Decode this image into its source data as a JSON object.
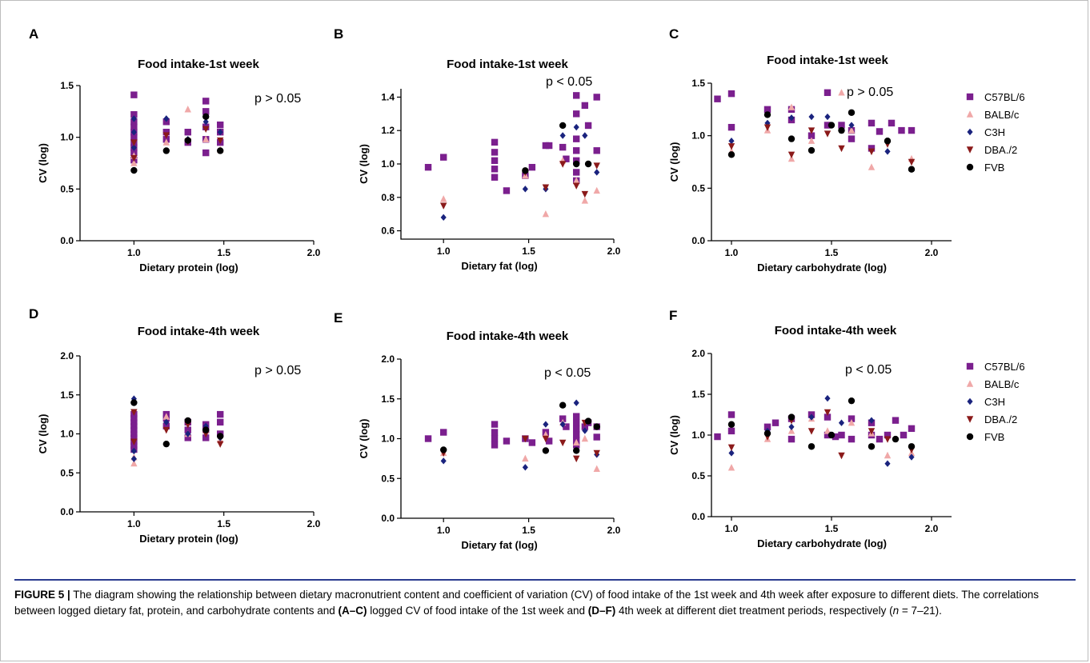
{
  "colors": {
    "C57BL/6": "#7b1f8e",
    "BALB/c": "#f0a8a8",
    "C3H": "#1a237e",
    "DBA./2": "#8b1a1a",
    "FVB": "#000000"
  },
  "legend": {
    "labels": [
      "C57BL/6",
      "BALB/c",
      "C3H",
      "DBA./2",
      "FVB"
    ],
    "markers": [
      "square",
      "triangle-up",
      "diamond",
      "triangle-down",
      "circle"
    ],
    "placement": "right"
  },
  "caption": {
    "label": "FIGURE 5 |",
    "part1": " The diagram showing the relationship between dietary macronutrient content and coefficient of variation (CV) of food intake of the 1st week and 4th week after exposure to different diets. The correlations between logged dietary fat, protein, and carbohydrate contents and ",
    "ref1": "(A–C)",
    "part2": " logged CV of food intake of the 1st week and ",
    "ref2": "(D–F)",
    "part3": " 4th week at different diet treatment periods, respectively (",
    "n_symbol": "n",
    "part4": " = 7–21)."
  },
  "chart_data": [
    {
      "panel": "A",
      "type": "scatter",
      "title": "Food intake-1st week",
      "xlabel": "Dietary protein (log)",
      "ylabel": "CV (log)",
      "xlim": [
        0.7,
        2.0
      ],
      "ylim": [
        0.0,
        1.5
      ],
      "xticks": [
        "1.0",
        "1.5",
        "2.0"
      ],
      "yticks": [
        "0.0",
        "0.5",
        "1.0",
        "1.5"
      ],
      "p_value": "p > 0.05",
      "series": [
        {
          "name": "C57BL/6",
          "x": [
            1.0,
            1.0,
            1.0,
            1.0,
            1.0,
            1.0,
            1.0,
            1.0,
            1.0,
            1.0,
            1.18,
            1.18,
            1.18,
            1.3,
            1.3,
            1.4,
            1.4,
            1.4,
            1.4,
            1.4,
            1.48,
            1.48,
            1.48
          ],
          "y": [
            1.41,
            1.22,
            1.15,
            1.1,
            1.05,
            1.0,
            0.95,
            0.9,
            0.85,
            0.78,
            1.15,
            1.05,
            0.98,
            1.05,
            0.95,
            1.35,
            1.25,
            1.1,
            0.98,
            0.85,
            1.12,
            1.05,
            0.95
          ]
        },
        {
          "name": "BALB/c",
          "x": [
            1.0,
            1.0,
            1.18,
            1.3,
            1.4,
            1.48
          ],
          "y": [
            0.82,
            0.75,
            0.95,
            1.27,
            0.98,
            0.88
          ]
        },
        {
          "name": "C3H",
          "x": [
            1.0,
            1.0,
            1.0,
            1.18,
            1.3,
            1.4,
            1.48
          ],
          "y": [
            1.18,
            1.05,
            0.9,
            1.18,
            0.98,
            1.15,
            1.05
          ]
        },
        {
          "name": "DBA./2",
          "x": [
            1.0,
            1.0,
            1.18,
            1.3,
            1.4,
            1.48
          ],
          "y": [
            0.95,
            0.8,
            1.02,
            0.96,
            1.08,
            0.97
          ]
        },
        {
          "name": "FVB",
          "x": [
            1.0,
            1.18,
            1.3,
            1.4,
            1.48
          ],
          "y": [
            0.68,
            0.87,
            0.97,
            1.2,
            0.87
          ]
        }
      ]
    },
    {
      "panel": "B",
      "type": "scatter",
      "title": "Food intake-1st week",
      "xlabel": "Dietary fat (log)",
      "ylabel": "CV (log)",
      "xlim": [
        0.75,
        2.0
      ],
      "ylim": [
        0.55,
        1.45
      ],
      "xticks": [
        "1.0",
        "1.5",
        "2.0"
      ],
      "yticks": [
        "0.6",
        "0.8",
        "1.0",
        "1.2",
        "1.4"
      ],
      "p_value": "p < 0.05",
      "series": [
        {
          "name": "C57BL/6",
          "x": [
            0.91,
            1.0,
            1.3,
            1.3,
            1.3,
            1.3,
            1.3,
            1.37,
            1.48,
            1.52,
            1.6,
            1.62,
            1.7,
            1.72,
            1.78,
            1.78,
            1.78,
            1.78,
            1.78,
            1.78,
            1.78,
            1.83,
            1.85,
            1.9,
            1.9
          ],
          "y": [
            0.98,
            1.04,
            1.13,
            1.07,
            1.02,
            0.97,
            0.92,
            0.84,
            0.93,
            0.98,
            1.11,
            1.11,
            1.1,
            1.03,
            1.41,
            1.3,
            1.15,
            1.08,
            1.02,
            0.95,
            0.9,
            1.35,
            1.23,
            1.4,
            1.08
          ]
        },
        {
          "name": "BALB/c",
          "x": [
            1.0,
            1.48,
            1.6,
            1.7,
            1.78,
            1.83,
            1.9
          ],
          "y": [
            0.79,
            0.93,
            0.7,
            1.02,
            0.9,
            0.78,
            0.84
          ]
        },
        {
          "name": "C3H",
          "x": [
            1.0,
            1.48,
            1.6,
            1.7,
            1.78,
            1.83,
            1.9
          ],
          "y": [
            0.68,
            0.85,
            0.85,
            1.17,
            1.22,
            1.17,
            0.95
          ]
        },
        {
          "name": "DBA./2",
          "x": [
            1.0,
            1.48,
            1.6,
            1.7,
            1.78,
            1.83,
            1.9
          ],
          "y": [
            0.75,
            0.95,
            0.86,
            1.0,
            0.87,
            0.82,
            0.99
          ]
        },
        {
          "name": "FVB",
          "x": [
            1.48,
            1.7,
            1.78,
            1.85
          ],
          "y": [
            0.96,
            1.23,
            1.0,
            1.0
          ]
        }
      ]
    },
    {
      "panel": "C",
      "type": "scatter",
      "title": "Food intake-1st week",
      "xlabel": "Dietary carbohydrate (log)",
      "ylabel": "CV (log)",
      "xlim": [
        0.9,
        2.1
      ],
      "ylim": [
        0.0,
        1.5
      ],
      "xticks": [
        "1.0",
        "1.5",
        "2.0"
      ],
      "yticks": [
        "0.0",
        "0.5",
        "1.0",
        "1.5"
      ],
      "p_value": "p > 0.05",
      "series": [
        {
          "name": "C57BL/6",
          "x": [
            0.93,
            1.0,
            1.0,
            1.18,
            1.3,
            1.3,
            1.4,
            1.48,
            1.48,
            1.55,
            1.6,
            1.6,
            1.7,
            1.7,
            1.74,
            1.8,
            1.85,
            1.9
          ],
          "y": [
            1.35,
            1.4,
            1.08,
            1.25,
            1.25,
            1.15,
            1.0,
            1.41,
            1.1,
            1.1,
            1.05,
            0.97,
            1.12,
            0.88,
            1.04,
            1.12,
            1.05,
            1.05
          ]
        },
        {
          "name": "BALB/c",
          "x": [
            1.0,
            1.18,
            1.3,
            1.3,
            1.4,
            1.55,
            1.6,
            1.7,
            1.9
          ],
          "y": [
            0.85,
            1.05,
            1.27,
            0.78,
            0.95,
            1.41,
            1.05,
            0.7,
            0.78
          ]
        },
        {
          "name": "C3H",
          "x": [
            1.0,
            1.18,
            1.3,
            1.4,
            1.48,
            1.55,
            1.6,
            1.78,
            1.9
          ],
          "y": [
            0.95,
            1.12,
            1.17,
            1.18,
            1.18,
            1.05,
            1.1,
            0.85,
            0.68
          ]
        },
        {
          "name": "DBA./2",
          "x": [
            1.0,
            1.18,
            1.3,
            1.4,
            1.48,
            1.55,
            1.7,
            1.78,
            1.9
          ],
          "y": [
            0.9,
            1.08,
            0.82,
            1.05,
            1.02,
            0.88,
            0.85,
            0.92,
            0.75
          ]
        },
        {
          "name": "FVB",
          "x": [
            1.0,
            1.18,
            1.3,
            1.4,
            1.5,
            1.55,
            1.6,
            1.78,
            1.9
          ],
          "y": [
            0.82,
            1.2,
            0.97,
            0.86,
            1.1,
            1.05,
            1.22,
            0.95,
            0.68
          ]
        }
      ]
    },
    {
      "panel": "D",
      "type": "scatter",
      "title": "Food intake-4th week",
      "xlabel": "Dietary protein (log)",
      "ylabel": "CV (log)",
      "xlim": [
        0.7,
        2.0
      ],
      "ylim": [
        0.0,
        2.0
      ],
      "xticks": [
        "1.0",
        "1.5",
        "2.0"
      ],
      "yticks": [
        "0.0",
        "0.5",
        "1.0",
        "1.5",
        "2.0"
      ],
      "p_value": "p > 0.05",
      "series": [
        {
          "name": "C57BL/6",
          "x": [
            1.0,
            1.0,
            1.0,
            1.0,
            1.0,
            1.0,
            1.0,
            1.0,
            1.0,
            1.0,
            1.18,
            1.18,
            1.18,
            1.3,
            1.3,
            1.3,
            1.4,
            1.4,
            1.4,
            1.48,
            1.48,
            1.48
          ],
          "y": [
            1.25,
            1.2,
            1.15,
            1.1,
            1.05,
            1.0,
            0.95,
            0.9,
            0.85,
            0.8,
            1.25,
            1.2,
            1.1,
            1.15,
            1.05,
            0.95,
            1.12,
            1.05,
            0.95,
            1.25,
            1.15,
            1.0
          ]
        },
        {
          "name": "BALB/c",
          "x": [
            1.0,
            1.0,
            1.18,
            1.3,
            1.4,
            1.48
          ],
          "y": [
            0.62,
            0.7,
            1.22,
            1.0,
            1.05,
            0.92
          ]
        },
        {
          "name": "C3H",
          "x": [
            1.0,
            1.0,
            1.0,
            1.18,
            1.3,
            1.4,
            1.48
          ],
          "y": [
            1.45,
            0.68,
            0.78,
            1.15,
            1.0,
            1.1,
            0.95
          ]
        },
        {
          "name": "DBA./2",
          "x": [
            1.0,
            1.0,
            1.18,
            1.3,
            1.4,
            1.48
          ],
          "y": [
            1.28,
            0.9,
            1.05,
            1.12,
            1.0,
            0.87
          ]
        },
        {
          "name": "FVB",
          "x": [
            1.0,
            1.18,
            1.3,
            1.4,
            1.48
          ],
          "y": [
            1.4,
            0.87,
            1.17,
            1.05,
            0.97
          ]
        }
      ]
    },
    {
      "panel": "E",
      "type": "scatter",
      "title": "Food intake-4th week",
      "xlabel": "Dietary fat (log)",
      "ylabel": "CV (log)",
      "xlim": [
        0.75,
        2.0
      ],
      "ylim": [
        0.0,
        2.0
      ],
      "xticks": [
        "1.0",
        "1.5",
        "2.0"
      ],
      "yticks": [
        "0.0",
        "0.5",
        "1.0",
        "1.5",
        "2.0"
      ],
      "p_value": "p < 0.05",
      "series": [
        {
          "name": "C57BL/6",
          "x": [
            0.91,
            1.0,
            1.3,
            1.3,
            1.3,
            1.3,
            1.37,
            1.48,
            1.52,
            1.6,
            1.62,
            1.7,
            1.72,
            1.78,
            1.78,
            1.78,
            1.78,
            1.78,
            1.78,
            1.83,
            1.85,
            1.9,
            1.9
          ],
          "y": [
            1.0,
            1.08,
            1.18,
            1.08,
            1.0,
            0.92,
            0.97,
            1.0,
            0.95,
            1.08,
            0.97,
            1.25,
            1.15,
            1.28,
            1.2,
            1.12,
            1.05,
            0.98,
            0.92,
            1.15,
            1.2,
            1.15,
            1.02
          ]
        },
        {
          "name": "BALB/c",
          "x": [
            1.0,
            1.48,
            1.6,
            1.7,
            1.78,
            1.83,
            1.9
          ],
          "y": [
            0.82,
            0.75,
            1.05,
            1.2,
            0.95,
            1.0,
            0.62
          ]
        },
        {
          "name": "C3H",
          "x": [
            1.0,
            1.48,
            1.6,
            1.7,
            1.78,
            1.83,
            1.9
          ],
          "y": [
            0.72,
            0.64,
            1.18,
            1.18,
            1.45,
            1.1,
            0.8
          ]
        },
        {
          "name": "DBA./2",
          "x": [
            1.0,
            1.48,
            1.6,
            1.7,
            1.78,
            1.83,
            1.9
          ],
          "y": [
            0.82,
            1.0,
            1.0,
            0.95,
            0.75,
            1.2,
            0.82
          ]
        },
        {
          "name": "FVB",
          "x": [
            1.0,
            1.6,
            1.7,
            1.78,
            1.85,
            1.9
          ],
          "y": [
            0.86,
            0.85,
            1.42,
            0.85,
            1.22,
            1.15
          ]
        }
      ]
    },
    {
      "panel": "F",
      "type": "scatter",
      "title": "Food intake-4th week",
      "xlabel": "Dietary carbohydrate (log)",
      "ylabel": "CV (log)",
      "xlim": [
        0.9,
        2.1
      ],
      "ylim": [
        0.0,
        2.0
      ],
      "xticks": [
        "1.0",
        "1.5",
        "2.0"
      ],
      "yticks": [
        "0.0",
        "0.5",
        "1.0",
        "1.5",
        "2.0"
      ],
      "p_value": "p < 0.05",
      "series": [
        {
          "name": "C57BL/6",
          "x": [
            0.93,
            1.0,
            1.0,
            1.18,
            1.22,
            1.3,
            1.3,
            1.4,
            1.48,
            1.48,
            1.52,
            1.55,
            1.6,
            1.6,
            1.7,
            1.7,
            1.74,
            1.78,
            1.82,
            1.86,
            1.9
          ],
          "y": [
            0.98,
            1.25,
            1.05,
            1.1,
            1.15,
            1.2,
            0.95,
            1.25,
            1.22,
            1.0,
            0.98,
            1.0,
            1.2,
            0.95,
            1.15,
            1.0,
            0.95,
            1.0,
            1.18,
            1.0,
            1.08
          ]
        },
        {
          "name": "BALB/c",
          "x": [
            1.0,
            1.18,
            1.3,
            1.4,
            1.48,
            1.6,
            1.7,
            1.78,
            1.9
          ],
          "y": [
            0.6,
            0.95,
            1.05,
            1.2,
            1.05,
            1.15,
            1.02,
            0.75,
            0.78
          ]
        },
        {
          "name": "C3H",
          "x": [
            1.0,
            1.18,
            1.3,
            1.4,
            1.48,
            1.55,
            1.7,
            1.78,
            1.9
          ],
          "y": [
            0.78,
            1.05,
            1.1,
            1.22,
            1.45,
            1.15,
            1.18,
            0.65,
            0.73
          ]
        },
        {
          "name": "DBA./2",
          "x": [
            1.0,
            1.18,
            1.3,
            1.4,
            1.48,
            1.55,
            1.7,
            1.78,
            1.9
          ],
          "y": [
            0.85,
            0.98,
            1.18,
            1.05,
            1.28,
            0.75,
            1.05,
            0.95,
            0.82
          ]
        },
        {
          "name": "FVB",
          "x": [
            1.0,
            1.18,
            1.3,
            1.4,
            1.5,
            1.6,
            1.7,
            1.82,
            1.9
          ],
          "y": [
            1.13,
            1.02,
            1.22,
            0.86,
            1.0,
            1.42,
            0.86,
            0.95,
            0.86
          ]
        }
      ]
    }
  ]
}
